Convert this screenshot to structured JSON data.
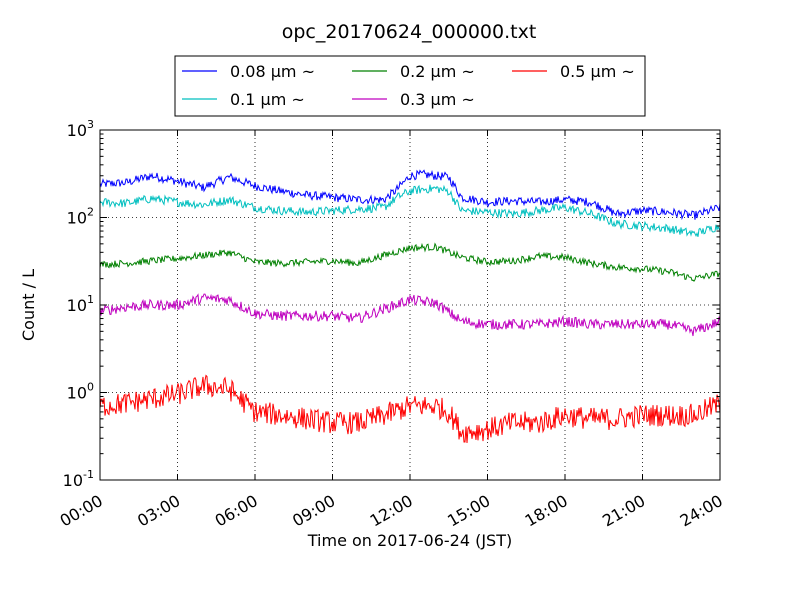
{
  "chart_data": {
    "type": "line",
    "title": "opc_20170624_000000.txt",
    "xlabel": "Time on 2017-06-24 (JST)",
    "ylabel": "Count / L",
    "x_tick_labels": [
      "00:00",
      "03:00",
      "06:00",
      "09:00",
      "12:00",
      "15:00",
      "18:00",
      "21:00",
      "24:00"
    ],
    "xlim_hours": [
      0,
      24
    ],
    "yscale": "log",
    "ylim": [
      0.1,
      1000
    ],
    "y_tick_labels": [
      {
        "base": "10",
        "exp": "-1"
      },
      {
        "base": "10",
        "exp": "0"
      },
      {
        "base": "10",
        "exp": "1"
      },
      {
        "base": "10",
        "exp": "2"
      },
      {
        "base": "10",
        "exp": "3"
      }
    ],
    "grid": true,
    "legend_position": "top-center, above plot",
    "series": [
      {
        "name": "0.08 μm ~",
        "color": "#0000ff",
        "x_hours": [
          0,
          1,
          2,
          3,
          4,
          5,
          6,
          7,
          8,
          9,
          10,
          11,
          11.5,
          12,
          12.5,
          13,
          13.5,
          14,
          15,
          16,
          17,
          18,
          19,
          20,
          21,
          22,
          23,
          24
        ],
        "values": [
          240,
          250,
          300,
          260,
          220,
          290,
          230,
          200,
          180,
          170,
          160,
          160,
          210,
          300,
          310,
          300,
          290,
          170,
          150,
          155,
          150,
          160,
          150,
          110,
          120,
          115,
          105,
          130
        ]
      },
      {
        "name": "0.1 μm ~",
        "color": "#00bfbf",
        "x_hours": [
          0,
          1,
          2,
          3,
          4,
          5,
          6,
          7,
          8,
          9,
          10,
          11,
          11.5,
          12,
          12.5,
          13,
          13.5,
          14,
          15,
          16,
          17,
          18,
          19,
          20,
          21,
          22,
          23,
          24
        ],
        "values": [
          150,
          145,
          165,
          150,
          140,
          160,
          130,
          120,
          115,
          120,
          125,
          130,
          170,
          200,
          210,
          215,
          200,
          120,
          115,
          110,
          120,
          130,
          110,
          85,
          80,
          75,
          65,
          80
        ]
      },
      {
        "name": "0.2 μm ~",
        "color": "#008000",
        "x_hours": [
          0,
          1,
          2,
          3,
          4,
          5,
          6,
          7,
          8,
          9,
          10,
          11,
          12,
          13,
          14,
          15,
          16,
          17,
          18,
          19,
          20,
          21,
          22,
          23,
          24
        ],
        "values": [
          29,
          30,
          32,
          34,
          37,
          40,
          31,
          30,
          31,
          32,
          30,
          37,
          45,
          46,
          35,
          31,
          32,
          36,
          35,
          30,
          27,
          26,
          24,
          20,
          23
        ]
      },
      {
        "name": "0.3 μm ~",
        "color": "#bf00bf",
        "x_hours": [
          0,
          1,
          2,
          3,
          4,
          5,
          6,
          7,
          8,
          9,
          10,
          11,
          12,
          13,
          14,
          15,
          16,
          17,
          18,
          19,
          20,
          21,
          22,
          23,
          24
        ],
        "values": [
          8.5,
          9.5,
          10,
          10,
          12,
          11.5,
          8,
          7.5,
          7.5,
          7.5,
          7,
          9,
          11.5,
          10.5,
          6.5,
          6,
          6,
          6,
          6.5,
          6,
          6,
          6,
          6,
          5,
          6.5
        ]
      },
      {
        "name": "0.5 μm ~",
        "color": "#ff0000",
        "x_hours": [
          0,
          1,
          2,
          3,
          4,
          5,
          6,
          7,
          8,
          9,
          10,
          11,
          12,
          13,
          13.5,
          14,
          15,
          16,
          17,
          18,
          19,
          20,
          21,
          22,
          23,
          24
        ],
        "values": [
          0.7,
          0.75,
          0.85,
          0.95,
          1.2,
          1.1,
          0.6,
          0.55,
          0.5,
          0.45,
          0.45,
          0.55,
          0.7,
          0.7,
          0.6,
          0.35,
          0.38,
          0.45,
          0.45,
          0.55,
          0.5,
          0.5,
          0.55,
          0.55,
          0.55,
          0.75
        ]
      }
    ]
  }
}
